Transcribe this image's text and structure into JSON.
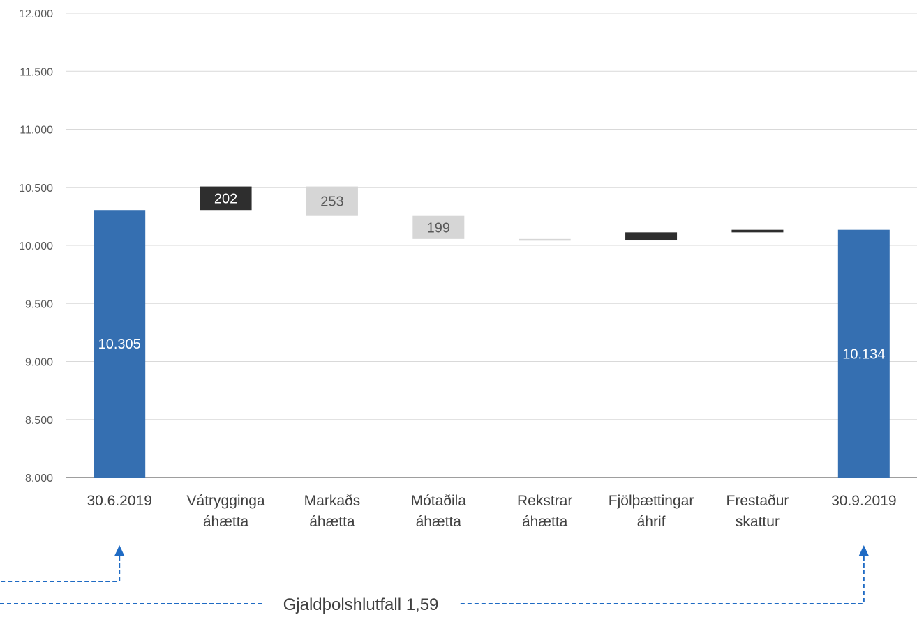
{
  "chart_data": {
    "type": "waterfall",
    "title": "",
    "xlabel": "",
    "ylabel": "",
    "ylim": [
      8000,
      12000
    ],
    "ytick_step": 500,
    "ytick_labels": [
      "8.000",
      "8.500",
      "9.000",
      "9.500",
      "10.000",
      "10.500",
      "11.000",
      "11.500",
      "12.000"
    ],
    "grid": true,
    "categories": [
      {
        "lines": [
          "30.6.2019"
        ]
      },
      {
        "lines": [
          "Vátrygginga",
          "áhætta"
        ]
      },
      {
        "lines": [
          "Markaðs",
          "áhætta"
        ]
      },
      {
        "lines": [
          "Mótaðila",
          "áhætta"
        ]
      },
      {
        "lines": [
          "Rekstrar",
          "áhætta"
        ]
      },
      {
        "lines": [
          "Fjölþættingar",
          "áhrif"
        ]
      },
      {
        "lines": [
          "Frestaður",
          "skattur"
        ]
      },
      {
        "lines": [
          "30.9.2019"
        ]
      }
    ],
    "bars": [
      {
        "kind": "total",
        "start": 8000,
        "end": 10305,
        "label": "10.305"
      },
      {
        "kind": "increase",
        "start": 10305,
        "end": 10507,
        "label": "202"
      },
      {
        "kind": "decrease",
        "start": 10507,
        "end": 10254,
        "label": "253"
      },
      {
        "kind": "decrease",
        "start": 10254,
        "end": 10055,
        "label": "199"
      },
      {
        "kind": "decrease",
        "start": 10055,
        "end": 10048,
        "label": ""
      },
      {
        "kind": "increase",
        "start": 10048,
        "end": 10112,
        "label": ""
      },
      {
        "kind": "increase",
        "start": 10112,
        "end": 10134,
        "label": ""
      },
      {
        "kind": "total",
        "start": 8000,
        "end": 10134,
        "label": "10.134"
      }
    ],
    "colors": {
      "total": "#356FB1",
      "increase": "#2E2E2E",
      "decrease": "#D6D6D6",
      "total_label": "#FFFFFF",
      "increase_label": "#FFFFFF",
      "decrease_label": "#595959",
      "connector": "#1F6BC4"
    },
    "annotation": {
      "text": "Gjaldþolshlutfall 1,59",
      "from_category": 0,
      "to_category": 7
    }
  }
}
